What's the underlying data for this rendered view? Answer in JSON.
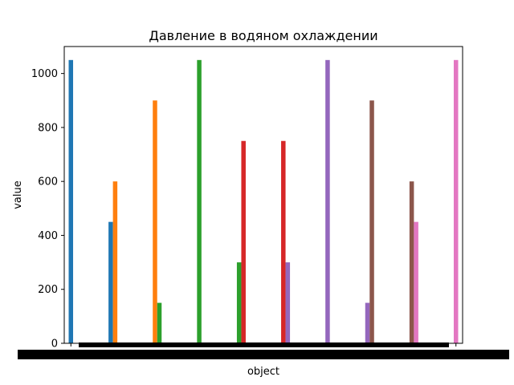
{
  "chart_data": {
    "type": "bar",
    "title": "Давление в водяном охлаждении",
    "xlabel": "object",
    "ylabel": "value",
    "ylim": [
      0,
      1100
    ],
    "yticks": [
      0,
      200,
      400,
      600,
      800,
      1000
    ],
    "grid": false,
    "legend": "none",
    "bars": [
      {
        "x": 0.0,
        "value": 1050,
        "color": "#1f77b4"
      },
      {
        "x": 0.9,
        "value": 450,
        "color": "#1f77b4"
      },
      {
        "x": 1.0,
        "value": 600,
        "color": "#ff7f0e"
      },
      {
        "x": 1.9,
        "value": 900,
        "color": "#ff7f0e"
      },
      {
        "x": 2.0,
        "value": 150,
        "color": "#2ca02c"
      },
      {
        "x": 2.9,
        "value": 1050,
        "color": "#2ca02c"
      },
      {
        "x": 3.8,
        "value": 300,
        "color": "#2ca02c"
      },
      {
        "x": 3.9,
        "value": 750,
        "color": "#d62728"
      },
      {
        "x": 4.8,
        "value": 750,
        "color": "#d62728"
      },
      {
        "x": 4.9,
        "value": 300,
        "color": "#9467bd"
      },
      {
        "x": 5.8,
        "value": 1050,
        "color": "#9467bd"
      },
      {
        "x": 6.7,
        "value": 150,
        "color": "#9467bd"
      },
      {
        "x": 6.8,
        "value": 900,
        "color": "#8c564b"
      },
      {
        "x": 7.7,
        "value": 600,
        "color": "#8c564b"
      },
      {
        "x": 7.8,
        "value": 450,
        "color": "#e377c2"
      },
      {
        "x": 8.7,
        "value": 1050,
        "color": "#e377c2"
      }
    ]
  }
}
